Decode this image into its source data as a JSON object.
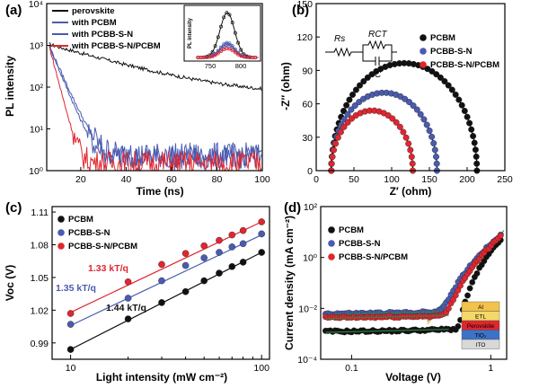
{
  "colors": {
    "black": "#111111",
    "blue": "#4a5bb0",
    "red": "#e0262f",
    "green": "#2a8a45"
  },
  "chart_data": [
    {
      "panel": "(a)",
      "type": "line",
      "xlabel": "Time (ns)",
      "ylabel": "PL intensity",
      "xlim": [
        5,
        100
      ],
      "ylim": [
        1,
        10000
      ],
      "yscale": "log",
      "xticks": [
        "20",
        "40",
        "60",
        "80",
        "100"
      ],
      "yticks": [
        "10⁰",
        "10¹",
        "10²",
        "10³",
        "10⁴"
      ],
      "legend_position": "top-left",
      "series": [
        {
          "name": "perovskite",
          "color": "#111111",
          "start": 1000,
          "tau": 27,
          "floor": 60
        },
        {
          "name": "with PCBM",
          "color": "#4a5bb0",
          "start": 1000,
          "tau": 3.3,
          "floor": 2.1
        },
        {
          "name": "with PCBB-S-N",
          "color": "#4a5bb0",
          "start": 1000,
          "tau": 3.6,
          "floor": 2.3
        },
        {
          "name": "with PCBB-S-N/PCBM",
          "color": "#e0262f",
          "start": 1000,
          "tau": 2.1,
          "floor": 1.5
        }
      ],
      "inset": {
        "ylabel": "PL intensity",
        "xticks": [
          "750",
          "800"
        ],
        "peak_nm": 775,
        "peaks": [
          {
            "series": "perovskite",
            "color": "#111111",
            "height": 1.0
          },
          {
            "series": "with PCBM",
            "color": "#4a5bb0",
            "height": 0.33
          },
          {
            "series": "with PCBB-S-N",
            "color": "#4a5bb0",
            "height": 0.28
          },
          {
            "series": "with PCBB-S-N/PCBM",
            "color": "#e0262f",
            "height": 0.2
          }
        ]
      }
    },
    {
      "panel": "(b)",
      "type": "scatter",
      "xlabel": "Z′ (ohm)",
      "ylabel": "-Z″ (ohm)",
      "xlim": [
        0,
        250
      ],
      "ylim": [
        0,
        150
      ],
      "xticks": [
        "0",
        "50",
        "100",
        "150",
        "200",
        "250"
      ],
      "yticks": [
        "0",
        "30",
        "60",
        "90",
        "120",
        "150"
      ],
      "legend_position": "top-right",
      "circuit_labels": {
        "rs": "Rs",
        "rct": "RCT",
        "c": "C"
      },
      "series": [
        {
          "name": "PCBM",
          "color": "#111111",
          "rs": 20,
          "rct": 193
        },
        {
          "name": "PCBB-S-N",
          "color": "#4a5bb0",
          "rs": 20,
          "rct": 140
        },
        {
          "name": "PCBB-S-N/PCBM",
          "color": "#e0262f",
          "rs": 20,
          "rct": 108
        }
      ]
    },
    {
      "panel": "(c)",
      "type": "scatter",
      "xlabel": "Light intensity (mW cm⁻²)",
      "ylabel": "Voc (V)",
      "xscale": "log",
      "xlim": [
        8,
        110
      ],
      "ylim": [
        0.975,
        1.115
      ],
      "xticks": [
        "10",
        "100"
      ],
      "yticks": [
        "0.99",
        "1.02",
        "1.05",
        "1.08",
        "1.11"
      ],
      "legend_position": "top-left",
      "x": [
        10,
        20,
        30,
        40,
        50,
        60,
        70,
        80,
        100
      ],
      "series": [
        {
          "name": "PCBM",
          "color": "#111111",
          "values": [
            0.984,
            1.012,
            1.027,
            1.037,
            1.047,
            1.054,
            1.06,
            1.064,
            1.073
          ]
        },
        {
          "name": "PCBB-S-N",
          "color": "#4a5bb0",
          "values": [
            1.007,
            1.031,
            1.047,
            1.061,
            1.068,
            1.073,
            1.078,
            1.081,
            1.09
          ]
        },
        {
          "name": "PCBB-S-N/PCBM",
          "color": "#e0262f",
          "values": [
            1.017,
            1.046,
            1.062,
            1.072,
            1.079,
            1.084,
            1.089,
            1.093,
            1.101
          ]
        }
      ],
      "fits": [
        {
          "series": "PCBM",
          "label": "1.44 kT/q",
          "color": "#111111",
          "y10": 0.984,
          "y100": 1.073
        },
        {
          "series": "PCBB-S-N",
          "label": "1.35 kT/q",
          "color": "#4a5bb0",
          "y10": 1.006,
          "y100": 1.089
        },
        {
          "series": "PCBB-S-N/PCBM",
          "label": "1.33 kT/q",
          "color": "#e0262f",
          "y10": 1.018,
          "y100": 1.101
        }
      ]
    },
    {
      "panel": "(d)",
      "type": "scatter",
      "xlabel": "Voltage (V)",
      "ylabel": "Current density (mA cm⁻²)",
      "xscale": "log",
      "yscale": "log",
      "xlim": [
        0.06,
        1.3
      ],
      "ylim": [
        0.0001,
        100
      ],
      "xticks": [
        "0.1",
        "1"
      ],
      "yticks": [
        "10⁻⁴",
        "10⁻²",
        "10⁰",
        "10²"
      ],
      "legend_position": "top-left",
      "series": [
        {
          "name": "PCBM",
          "color": "#111111",
          "ohmic": 0.0012,
          "onset": 0.55,
          "sat": 6
        },
        {
          "name": "PCBB-S-N",
          "color": "#4a5bb0",
          "ohmic": 0.006,
          "onset": 0.38,
          "sat": 9
        },
        {
          "name": "PCBB-S-N/PCBM",
          "color": "#e0262f",
          "ohmic": 0.0042,
          "onset": 0.42,
          "sat": 8
        }
      ],
      "device_stack": [
        "Al",
        "ETL",
        "Perovskite",
        "TiO₂",
        "ITO"
      ],
      "device_colors": [
        "#f2c24a",
        "#f5d86a",
        "#e0262f",
        "#3c73c8",
        "#d8d8d8"
      ]
    }
  ]
}
